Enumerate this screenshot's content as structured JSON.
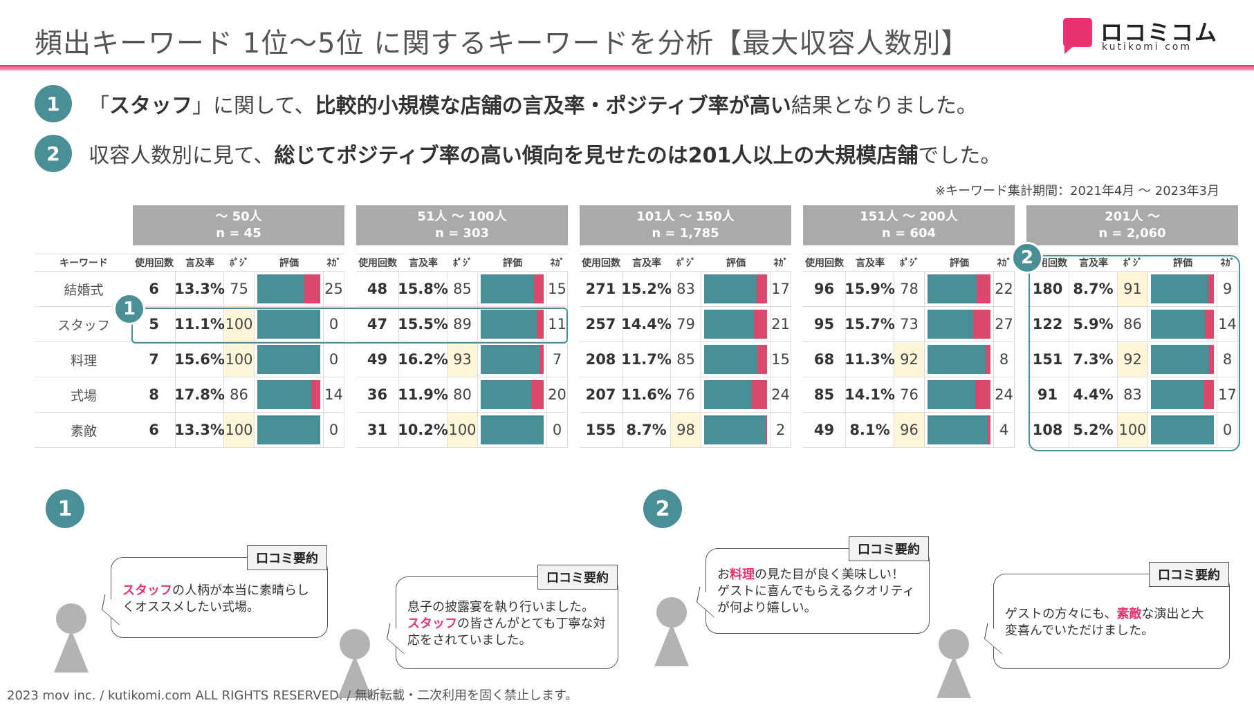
{
  "title": "頻出キーワード 1位～5位 に関するキーワードを分析【最大収容人数別】",
  "logo": {
    "jp": "ロコミコム",
    "en": "kutikomi com"
  },
  "points": [
    {
      "num": "1",
      "pre": "「",
      "b1": "スタッフ",
      "mid1": "」に関して、",
      "b2": "比較的小規模な店舗の言及率・ポジティブ率が高い",
      "post": "結果となりました。"
    },
    {
      "num": "2",
      "pre": "収容人数別に見て、",
      "b1": "総じてポジティブ率の高い傾向を見せたのは201人以上の大規模店舗",
      "post": "でした。"
    }
  ],
  "period": "※キーワード集計期間：2021年4月 ～ 2023年3月",
  "keyword_header": "キーワード",
  "keywords": [
    "結婚式",
    "スタッフ",
    "料理",
    "式場",
    "素敵"
  ],
  "column_headers": [
    "使用回数",
    "言及率",
    "ﾎﾟｼﾞ",
    "評価",
    "ﾈｶﾞ"
  ],
  "groups": [
    {
      "range": "～ 50人",
      "n": "n = 45",
      "rows": [
        {
          "count": "6",
          "rate": "13.3%",
          "pos": "75",
          "neg": "25",
          "hl": false
        },
        {
          "count": "5",
          "rate": "11.1%",
          "pos": "100",
          "neg": "0",
          "hl": true
        },
        {
          "count": "7",
          "rate": "15.6%",
          "pos": "100",
          "neg": "0",
          "hl": true
        },
        {
          "count": "8",
          "rate": "17.8%",
          "pos": "86",
          "neg": "14",
          "hl": false
        },
        {
          "count": "6",
          "rate": "13.3%",
          "pos": "100",
          "neg": "0",
          "hl": true
        }
      ]
    },
    {
      "range": "51人 ～ 100人",
      "n": "n = 303",
      "rows": [
        {
          "count": "48",
          "rate": "15.8%",
          "pos": "85",
          "neg": "15",
          "hl": false
        },
        {
          "count": "47",
          "rate": "15.5%",
          "pos": "89",
          "neg": "11",
          "hl": false
        },
        {
          "count": "49",
          "rate": "16.2%",
          "pos": "93",
          "neg": "7",
          "hl": true
        },
        {
          "count": "36",
          "rate": "11.9%",
          "pos": "80",
          "neg": "20",
          "hl": false
        },
        {
          "count": "31",
          "rate": "10.2%",
          "pos": "100",
          "neg": "0",
          "hl": true
        }
      ]
    },
    {
      "range": "101人 ～ 150人",
      "n": "n = 1,785",
      "rows": [
        {
          "count": "271",
          "rate": "15.2%",
          "pos": "83",
          "neg": "17",
          "hl": false
        },
        {
          "count": "257",
          "rate": "14.4%",
          "pos": "79",
          "neg": "21",
          "hl": false
        },
        {
          "count": "208",
          "rate": "11.7%",
          "pos": "85",
          "neg": "15",
          "hl": false
        },
        {
          "count": "207",
          "rate": "11.6%",
          "pos": "76",
          "neg": "24",
          "hl": false
        },
        {
          "count": "155",
          "rate": "8.7%",
          "pos": "98",
          "neg": "2",
          "hl": true
        }
      ]
    },
    {
      "range": "151人 ～ 200人",
      "n": "n = 604",
      "rows": [
        {
          "count": "96",
          "rate": "15.9%",
          "pos": "78",
          "neg": "22",
          "hl": false
        },
        {
          "count": "95",
          "rate": "15.7%",
          "pos": "73",
          "neg": "27",
          "hl": false
        },
        {
          "count": "68",
          "rate": "11.3%",
          "pos": "92",
          "neg": "8",
          "hl": true
        },
        {
          "count": "85",
          "rate": "14.1%",
          "pos": "76",
          "neg": "24",
          "hl": false
        },
        {
          "count": "49",
          "rate": "8.1%",
          "pos": "96",
          "neg": "4",
          "hl": true
        }
      ]
    },
    {
      "range": "201人 ～",
      "n": "n = 2,060",
      "rows": [
        {
          "count": "180",
          "rate": "8.7%",
          "pos": "91",
          "neg": "9",
          "hl": true
        },
        {
          "count": "122",
          "rate": "5.9%",
          "pos": "86",
          "neg": "14",
          "hl": false
        },
        {
          "count": "151",
          "rate": "7.3%",
          "pos": "92",
          "neg": "8",
          "hl": true
        },
        {
          "count": "91",
          "rate": "4.4%",
          "pos": "83",
          "neg": "17",
          "hl": false
        },
        {
          "count": "108",
          "rate": "5.2%",
          "pos": "100",
          "neg": "0",
          "hl": true
        }
      ]
    }
  ],
  "badges": {
    "one": "1",
    "two": "2"
  },
  "sections": [
    {
      "num": "1",
      "reviews": [
        {
          "label": "口コミ要約",
          "kw": "スタッフ",
          "rest": "の人柄が本当に素晴らし\nくオススメしたい式場。"
        },
        {
          "label": "口コミ要約",
          "pre": "息子の披露宴を執り行いました。\n",
          "kw": "スタッフ",
          "rest": "の皆さんがとても丁寧な対\n応をされていました。"
        }
      ]
    },
    {
      "num": "2",
      "reviews": [
        {
          "label": "口コミ要約",
          "pre": "お",
          "kw": "料理",
          "rest": "の見た目が良く美味しい！\nゲストに喜んでもらえるクオリティ\nが何より嬉しい。"
        },
        {
          "label": "口コミ要約",
          "pre": "ゲストの方々にも、",
          "kw": "素敵",
          "rest": "な演出と大\n変喜んでいただけました。"
        }
      ]
    }
  ],
  "colors": {
    "accent": "#e8336f",
    "teal": "#4a8f96",
    "neg": "#d9476c",
    "highlight": "#fdf6d8"
  },
  "footer": "2023 mov inc. / kutikomi.com ALL RIGHTS RESERVED. / 無断転載・二次利用を固く禁止します。"
}
